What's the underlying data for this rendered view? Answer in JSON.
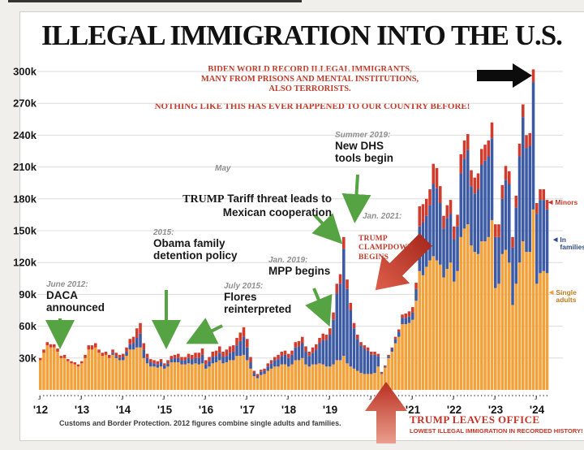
{
  "page": {
    "title": "ILLEGAL IMMIGRATION INTO THE U.S."
  },
  "banners": {
    "biden": "BIDEN WORLD RECORD ILLEGAL IMMIGRANTS,\nMANY FROM PRISONS AND MENTAL INSTITUTIONS,\nALSO TERRORISTS.",
    "nothing_like": "NOTHING LIKE THIS HAS EVER HAPPENED TO OUR COUNTRY BEFORE!"
  },
  "annotations": [
    {
      "date": "June 2012:",
      "label": "DACA\nannounced"
    },
    {
      "date": "2015:",
      "label": "Obama family\ndetention policy"
    },
    {
      "date": "July 2015:",
      "label": "Flores\nreinterpreted"
    },
    {
      "date": "May",
      "label_serif": "TRUMP",
      "label_rest": " Tariff threat leads to\nMexican cooperation"
    },
    {
      "date": "Jan. 2019:",
      "label": "MPP begins"
    },
    {
      "date": "Summer 2019:",
      "label": "New DHS\ntools begin"
    },
    {
      "date": "Jan. 2021:",
      "label": ""
    }
  ],
  "red_annotations": {
    "clampdown": "TRUMP CLAMPDOWN BEGINS",
    "leaves_office_title": "TRUMP LEAVES OFFICE",
    "leaves_office_sub": "LOWEST ILLEGAL IMMIGRATION IN RECORDED HISTORY!"
  },
  "legend": [
    {
      "label": "Minors",
      "color": "#C23B2B"
    },
    {
      "label": "In families",
      "color": "#2E4A86"
    },
    {
      "label": "Single adults",
      "color": "#C07A1E"
    }
  ],
  "footer": {
    "source": "Customs and Border Protection. 2012 figures combine single adults and families."
  },
  "chart_data": {
    "type": "bar",
    "stacked": true,
    "title": "ILLEGAL IMMIGRATION INTO THE U.S.",
    "unit": "monthly apprehensions (thousands)",
    "x_start": "2012-01",
    "x_end": "2024-04",
    "ylim": [
      0,
      310
    ],
    "grid": true,
    "y_ticks": [
      "30k",
      "60k",
      "90k",
      "120k",
      "150k",
      "180k",
      "210k",
      "240k",
      "270k",
      "300k"
    ],
    "year_labels": [
      "'12",
      "'13",
      "'14",
      "'15",
      "'16",
      "'17",
      "'18",
      "'19",
      "'21",
      "'22",
      "'23",
      "'24"
    ],
    "series": [
      {
        "name": "Single adults",
        "color": "#F2A13B",
        "values": [
          28,
          35,
          42,
          40,
          40,
          36,
          30,
          30,
          27,
          25,
          24,
          22,
          25,
          30,
          38,
          38,
          40,
          35,
          32,
          33,
          30,
          33,
          30,
          28,
          28,
          32,
          38,
          38,
          40,
          40,
          30,
          25,
          22,
          22,
          21,
          22,
          20,
          22,
          26,
          26,
          26,
          24,
          24,
          25,
          24,
          25,
          24,
          25,
          20,
          22,
          25,
          26,
          28,
          25,
          26,
          28,
          28,
          32,
          32,
          33,
          28,
          20,
          13,
          11,
          14,
          15,
          18,
          20,
          22,
          22,
          24,
          24,
          22,
          24,
          28,
          28,
          30,
          24,
          22,
          24,
          24,
          25,
          24,
          22,
          22,
          24,
          28,
          28,
          32,
          25,
          22,
          20,
          18,
          16,
          15,
          15,
          15,
          16,
          22,
          15,
          21,
          30,
          36,
          44,
          50,
          62,
          62,
          63,
          66,
          84,
          112,
          108,
          116,
          122,
          126,
          122,
          118,
          106,
          114,
          120,
          102,
          112,
          144,
          152,
          156,
          136,
          130,
          128,
          140,
          140,
          144,
          160,
          96,
          100,
          128,
          132,
          120,
          80,
          100,
          120,
          140,
          130,
          130,
          170,
          100,
          110,
          112,
          110
        ]
      },
      {
        "name": "In families",
        "color": "#3C5BA4",
        "values": [
          0,
          0,
          0,
          0,
          0,
          0,
          0,
          0,
          0,
          0,
          0,
          0,
          0,
          0,
          0,
          0,
          0,
          0,
          0,
          0,
          0,
          2,
          2,
          2,
          3,
          4,
          5,
          6,
          9,
          13,
          8,
          5,
          4,
          3,
          3,
          4,
          3,
          3,
          3,
          4,
          4,
          4,
          4,
          5,
          5,
          5,
          6,
          8,
          4,
          5,
          6,
          6,
          7,
          6,
          6,
          7,
          8,
          10,
          14,
          17,
          12,
          6,
          3,
          2,
          3,
          3,
          4,
          5,
          6,
          7,
          8,
          9,
          8,
          9,
          12,
          13,
          14,
          12,
          10,
          11,
          14,
          19,
          23,
          25,
          30,
          42,
          63,
          72,
          101,
          70,
          53,
          38,
          30,
          26,
          24,
          22,
          18,
          17,
          10,
          1,
          1,
          2,
          3,
          4,
          5,
          6,
          6,
          6,
          7,
          11,
          42,
          50,
          48,
          52,
          68,
          68,
          58,
          46,
          48,
          46,
          40,
          42,
          60,
          66,
          70,
          56,
          55,
          61,
          72,
          76,
          76,
          77,
          48,
          44,
          52,
          66,
          74,
          54,
          72,
          100,
          117,
          98,
          100,
          120,
          66,
          69,
          67,
          60
        ]
      },
      {
        "name": "Minors",
        "color": "#D23B2C",
        "values": [
          2,
          3,
          3,
          3,
          3,
          3,
          2,
          3,
          2,
          2,
          2,
          2,
          2,
          3,
          4,
          4,
          4,
          3,
          3,
          3,
          3,
          3,
          3,
          3,
          3,
          4,
          5,
          6,
          9,
          10,
          6,
          4,
          3,
          3,
          3,
          3,
          2,
          3,
          3,
          3,
          4,
          3,
          3,
          4,
          4,
          5,
          5,
          6,
          4,
          4,
          5,
          5,
          6,
          5,
          6,
          6,
          6,
          7,
          8,
          9,
          8,
          5,
          2,
          2,
          2,
          2,
          3,
          3,
          3,
          4,
          4,
          4,
          4,
          4,
          5,
          5,
          6,
          5,
          4,
          5,
          5,
          5,
          6,
          5,
          6,
          7,
          9,
          9,
          11,
          9,
          7,
          5,
          4,
          3,
          3,
          3,
          3,
          3,
          2,
          1,
          1,
          1,
          1,
          2,
          2,
          3,
          4,
          5,
          5,
          6,
          19,
          17,
          16,
          15,
          19,
          19,
          16,
          12,
          12,
          13,
          12,
          11,
          18,
          17,
          15,
          15,
          15,
          15,
          15,
          15,
          15,
          15,
          12,
          12,
          13,
          13,
          12,
          10,
          11,
          12,
          12,
          12,
          12,
          12,
          10,
          10,
          10,
          9
        ]
      }
    ]
  }
}
